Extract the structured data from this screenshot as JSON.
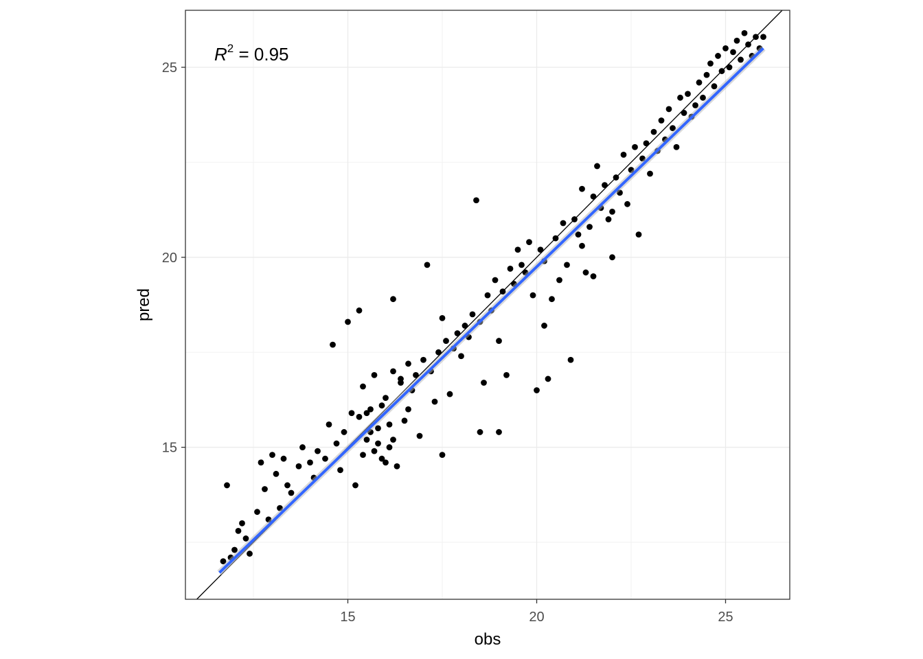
{
  "chart_data": {
    "type": "scatter",
    "title": "",
    "xlabel": "obs",
    "ylabel": "pred",
    "xlim": [
      10.7,
      26.7
    ],
    "ylim": [
      11.0,
      26.5
    ],
    "x_ticks": [
      15,
      20,
      25
    ],
    "y_ticks": [
      15,
      20,
      25
    ],
    "x_tick_labels": [
      "15",
      "20",
      "25"
    ],
    "y_tick_labels": [
      "15",
      "20",
      "25"
    ],
    "grid": true,
    "legend": "none",
    "annotation": {
      "base": "R",
      "superscript": "2",
      "rest": " = 0.95",
      "x": 11.5,
      "y": 25.5
    },
    "reference_line": {
      "slope": 1,
      "intercept": 0,
      "color": "#000000"
    },
    "fit_line": {
      "x": [
        11.6,
        26.0
      ],
      "y": [
        11.7,
        25.5
      ],
      "color": "#3366ff",
      "band_color": "#b3b3b3"
    },
    "series": [
      {
        "point_color": "#000000",
        "points": [
          [
            11.7,
            12.0
          ],
          [
            11.8,
            14.0
          ],
          [
            11.9,
            12.1
          ],
          [
            12.0,
            12.3
          ],
          [
            12.1,
            12.8
          ],
          [
            12.2,
            13.0
          ],
          [
            12.3,
            12.6
          ],
          [
            12.4,
            12.2
          ],
          [
            12.6,
            13.3
          ],
          [
            12.7,
            14.6
          ],
          [
            12.8,
            13.9
          ],
          [
            12.9,
            13.1
          ],
          [
            13.0,
            14.8
          ],
          [
            13.1,
            14.3
          ],
          [
            13.2,
            13.4
          ],
          [
            13.3,
            14.7
          ],
          [
            13.4,
            14.0
          ],
          [
            13.5,
            13.8
          ],
          [
            13.7,
            14.5
          ],
          [
            13.8,
            15.0
          ],
          [
            14.0,
            14.6
          ],
          [
            14.1,
            14.2
          ],
          [
            14.2,
            14.9
          ],
          [
            14.4,
            14.7
          ],
          [
            14.5,
            15.6
          ],
          [
            14.6,
            17.7
          ],
          [
            14.7,
            15.1
          ],
          [
            14.8,
            14.4
          ],
          [
            14.9,
            15.4
          ],
          [
            15.0,
            18.3
          ],
          [
            15.1,
            15.9
          ],
          [
            15.2,
            14.0
          ],
          [
            15.3,
            15.8
          ],
          [
            15.4,
            16.6
          ],
          [
            15.5,
            15.2
          ],
          [
            15.6,
            16.0
          ],
          [
            15.7,
            16.9
          ],
          [
            15.8,
            15.5
          ],
          [
            15.9,
            14.7
          ],
          [
            16.0,
            16.3
          ],
          [
            16.1,
            15.0
          ],
          [
            16.2,
            17.0
          ],
          [
            16.3,
            14.5
          ],
          [
            16.4,
            16.8
          ],
          [
            16.5,
            15.7
          ],
          [
            16.6,
            17.2
          ],
          [
            16.7,
            16.5
          ],
          [
            16.8,
            16.9
          ],
          [
            16.9,
            15.3
          ],
          [
            17.0,
            17.3
          ],
          [
            17.1,
            19.8
          ],
          [
            17.2,
            17.0
          ],
          [
            17.3,
            16.2
          ],
          [
            17.4,
            17.5
          ],
          [
            17.5,
            18.4
          ],
          [
            17.6,
            17.8
          ],
          [
            17.7,
            16.4
          ],
          [
            17.8,
            17.6
          ],
          [
            17.9,
            18.0
          ],
          [
            18.0,
            17.4
          ],
          [
            18.1,
            18.2
          ],
          [
            18.2,
            17.9
          ],
          [
            18.3,
            18.5
          ],
          [
            18.4,
            21.5
          ],
          [
            18.5,
            18.3
          ],
          [
            18.6,
            16.7
          ],
          [
            18.7,
            19.0
          ],
          [
            18.8,
            18.6
          ],
          [
            18.9,
            19.4
          ],
          [
            19.0,
            17.8
          ],
          [
            19.1,
            19.1
          ],
          [
            19.2,
            16.9
          ],
          [
            19.3,
            19.7
          ],
          [
            19.4,
            19.3
          ],
          [
            19.5,
            20.2
          ],
          [
            19.6,
            19.8
          ],
          [
            19.7,
            19.6
          ],
          [
            19.8,
            20.4
          ],
          [
            19.9,
            19.0
          ],
          [
            20.0,
            16.5
          ],
          [
            20.1,
            20.2
          ],
          [
            20.2,
            19.9
          ],
          [
            20.3,
            16.8
          ],
          [
            20.4,
            18.9
          ],
          [
            20.5,
            20.5
          ],
          [
            20.6,
            19.4
          ],
          [
            20.7,
            20.9
          ],
          [
            20.8,
            19.8
          ],
          [
            20.9,
            17.3
          ],
          [
            21.0,
            21.0
          ],
          [
            21.1,
            20.6
          ],
          [
            21.2,
            21.8
          ],
          [
            21.3,
            19.6
          ],
          [
            21.4,
            20.8
          ],
          [
            21.5,
            21.6
          ],
          [
            21.6,
            22.4
          ],
          [
            21.7,
            21.3
          ],
          [
            21.8,
            21.9
          ],
          [
            21.9,
            21.0
          ],
          [
            22.0,
            20.0
          ],
          [
            22.1,
            22.1
          ],
          [
            22.2,
            21.7
          ],
          [
            22.3,
            22.7
          ],
          [
            22.4,
            21.4
          ],
          [
            22.5,
            22.3
          ],
          [
            22.6,
            22.9
          ],
          [
            22.7,
            20.6
          ],
          [
            22.8,
            22.6
          ],
          [
            22.9,
            23.0
          ],
          [
            23.0,
            22.2
          ],
          [
            23.1,
            23.3
          ],
          [
            23.2,
            22.8
          ],
          [
            23.3,
            23.6
          ],
          [
            23.4,
            23.1
          ],
          [
            23.5,
            23.9
          ],
          [
            23.6,
            23.4
          ],
          [
            23.7,
            22.9
          ],
          [
            23.8,
            24.2
          ],
          [
            23.9,
            23.8
          ],
          [
            24.0,
            24.3
          ],
          [
            24.1,
            23.7
          ],
          [
            24.2,
            24.0
          ],
          [
            24.3,
            24.6
          ],
          [
            24.4,
            24.2
          ],
          [
            24.5,
            24.8
          ],
          [
            24.6,
            25.1
          ],
          [
            24.7,
            24.5
          ],
          [
            24.8,
            25.3
          ],
          [
            24.9,
            24.9
          ],
          [
            25.0,
            25.5
          ],
          [
            25.1,
            25.0
          ],
          [
            25.2,
            25.4
          ],
          [
            25.3,
            25.7
          ],
          [
            25.4,
            25.2
          ],
          [
            25.5,
            25.9
          ],
          [
            25.6,
            25.6
          ],
          [
            25.7,
            25.3
          ],
          [
            25.8,
            25.8
          ],
          [
            25.9,
            25.5
          ],
          [
            26.0,
            25.8
          ],
          [
            15.3,
            18.6
          ],
          [
            16.2,
            18.9
          ],
          [
            17.5,
            14.8
          ],
          [
            18.5,
            15.4
          ],
          [
            19.0,
            15.4
          ],
          [
            21.5,
            19.5
          ],
          [
            22.0,
            21.2
          ],
          [
            20.2,
            18.2
          ],
          [
            21.2,
            20.3
          ],
          [
            16.4,
            16.7
          ],
          [
            15.6,
            15.4
          ],
          [
            15.7,
            14.9
          ],
          [
            15.8,
            15.1
          ],
          [
            16.0,
            14.6
          ],
          [
            15.4,
            14.8
          ],
          [
            15.5,
            15.9
          ],
          [
            15.9,
            16.1
          ],
          [
            16.1,
            15.6
          ],
          [
            16.2,
            15.2
          ],
          [
            16.6,
            16.0
          ]
        ]
      }
    ]
  }
}
